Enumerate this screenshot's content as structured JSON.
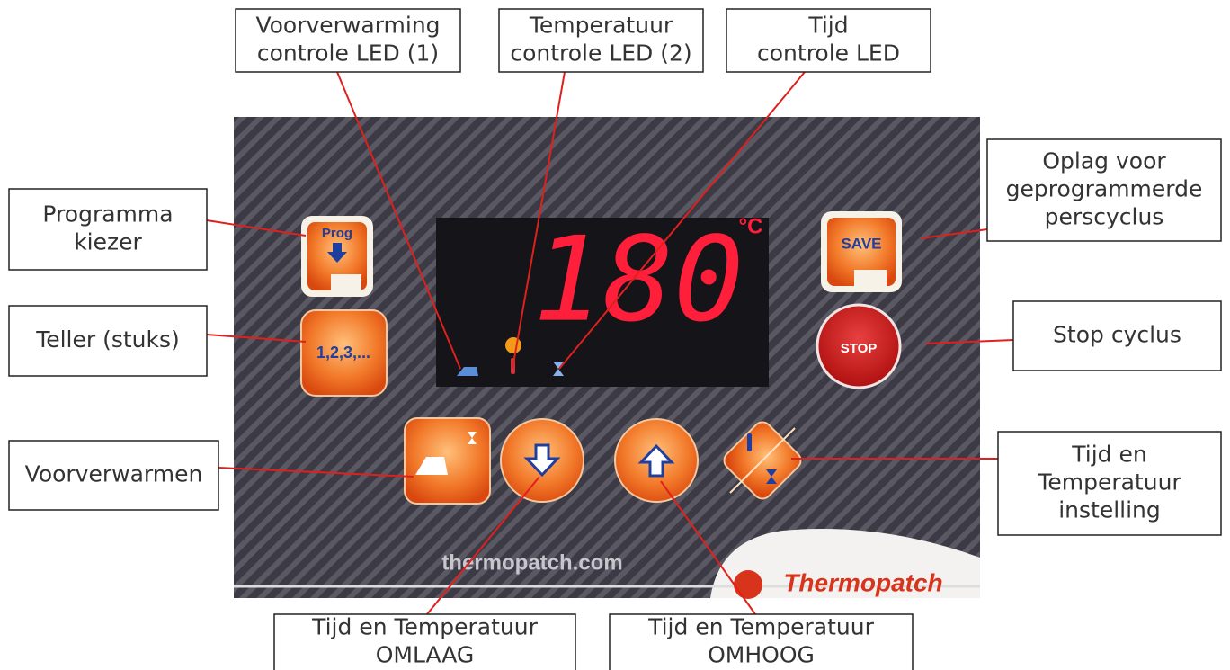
{
  "callouts": [
    {
      "lines": [
        "Voorverwarming",
        "controle LED (1)"
      ]
    },
    {
      "lines": [
        "Temperatuur",
        "controle LED (2)"
      ]
    },
    {
      "lines": [
        "Tijd",
        "controle LED"
      ]
    },
    {
      "lines": [
        "Programma",
        "kiezer"
      ]
    },
    {
      "lines": [
        "Teller (stuks)"
      ]
    },
    {
      "lines": [
        "Voorverwarmen"
      ]
    },
    {
      "lines": [
        "Oplag voor",
        "geprogrammerde",
        "perscyclus"
      ]
    },
    {
      "lines": [
        "Stop cyclus"
      ]
    },
    {
      "lines": [
        "Tijd en",
        "Temperatuur",
        "instelling"
      ]
    },
    {
      "lines": [
        "Tijd en Temperatuur",
        "OMLAAG"
      ]
    },
    {
      "lines": [
        "Tijd en Temperatuur",
        "OMHOOG"
      ]
    }
  ],
  "panel": {
    "display": "180",
    "unit": "°C",
    "prog": "Prog",
    "counter": "1,2,3,...",
    "save": "SAVE",
    "stop": "STOP",
    "website": "thermopatch.com",
    "brand": "Thermopatch"
  }
}
